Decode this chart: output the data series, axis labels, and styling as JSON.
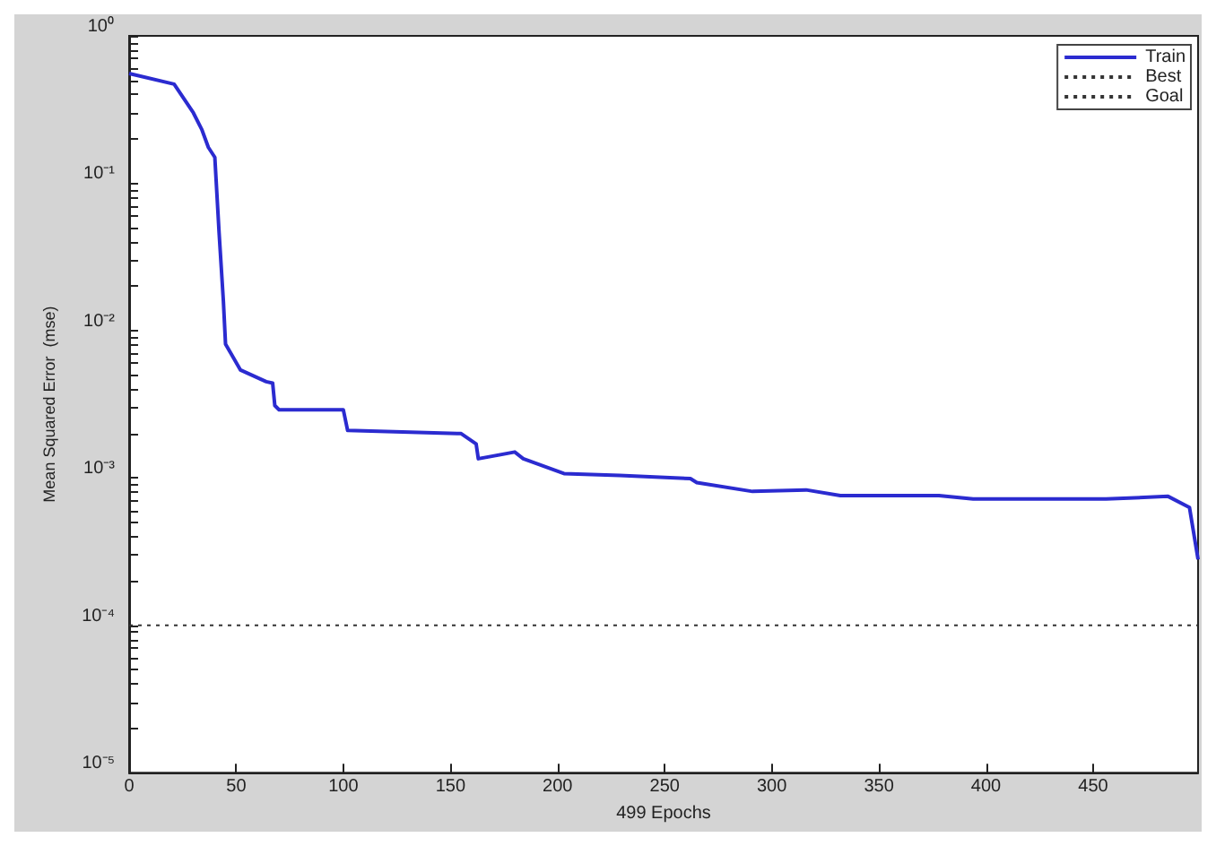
{
  "chart_data": {
    "type": "line",
    "xlabel": "499 Epochs",
    "ylabel": "Mean Squared Error  (mse)",
    "log": "y",
    "xlim": [
      0,
      499
    ],
    "xticks": [
      0,
      50,
      100,
      150,
      200,
      250,
      300,
      350,
      400,
      450
    ],
    "ylim": [
      1e-05,
      1
    ],
    "yticks": [
      {
        "value": 1e-05,
        "label": "10⁻⁵"
      },
      {
        "value": 0.0001,
        "label": "10⁻⁴"
      },
      {
        "value": 0.001,
        "label": "10⁻³"
      },
      {
        "value": 0.01,
        "label": "10⁻²"
      },
      {
        "value": 0.1,
        "label": "10⁻¹"
      },
      {
        "value": 1,
        "label": "10⁰"
      }
    ],
    "legend": "top right",
    "grid": false,
    "marker": "none",
    "series": [
      {
        "name": "Train",
        "color": "#2b2bd0",
        "line_style": "solid",
        "x": [
          0,
          21,
          30,
          34,
          37,
          40,
          42,
          44,
          45,
          52,
          64,
          67,
          68,
          70,
          100,
          102,
          155,
          162,
          163,
          180,
          184,
          203,
          229,
          262,
          265,
          291,
          316,
          332,
          378,
          394,
          456,
          485,
          495,
          499
        ],
        "values": [
          0.555,
          0.47,
          0.3,
          0.23,
          0.175,
          0.15,
          0.046,
          0.0158,
          0.0081,
          0.0054,
          0.0045,
          0.0044,
          0.0031,
          0.0029,
          0.0029,
          0.0021,
          0.002,
          0.0017,
          0.00135,
          0.0015,
          0.00135,
          0.00107,
          0.00104,
          0.00099,
          0.00093,
          0.00081,
          0.00083,
          0.00076,
          0.00076,
          0.00072,
          0.00072,
          0.00075,
          0.00063,
          0.00028
        ]
      },
      {
        "name": "Best",
        "color": "#333333",
        "line_style": "dotted"
      },
      {
        "name": "Goal",
        "color": "#333333",
        "line_style": "dotted",
        "x": [
          0,
          499
        ],
        "values": [
          0.0001,
          0.0001
        ]
      }
    ]
  }
}
